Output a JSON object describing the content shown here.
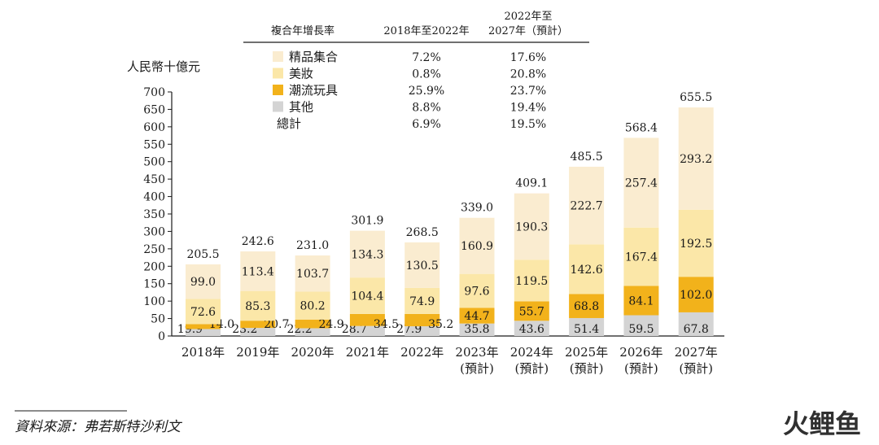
{
  "chart_data": {
    "type": "bar",
    "stacked": true,
    "ylabel": "人民幣十億元",
    "ylim": [
      0,
      700
    ],
    "yticks": [
      0,
      50,
      100,
      150,
      200,
      250,
      300,
      350,
      400,
      450,
      500,
      550,
      600,
      650,
      700
    ],
    "categories": [
      "2018年",
      "2019年",
      "2020年",
      "2021年",
      "2022年",
      "2023年",
      "2024年",
      "2025年",
      "2026年",
      "2027年"
    ],
    "categories_sub": [
      "",
      "",
      "",
      "",
      "",
      "(預計)",
      "(預計)",
      "(預計)",
      "(預計)",
      "(預計)"
    ],
    "series": [
      {
        "name": "其他",
        "color": "#d4d4d4",
        "values": [
          19.9,
          23.2,
          22.2,
          28.7,
          27.9,
          35.8,
          43.6,
          51.4,
          59.5,
          67.8
        ],
        "labels": [
          "19.9",
          "23.2",
          "22.2",
          "28.7",
          "27.9",
          "35.8",
          "43.6",
          "51.4",
          "59.5",
          "67.8"
        ]
      },
      {
        "name": "潮流玩具",
        "color": "#f2b21b",
        "values": [
          14.0,
          20.7,
          24.9,
          34.5,
          35.2,
          44.7,
          55.7,
          68.8,
          84.1,
          102.0
        ],
        "labels": [
          "14.0",
          "20.7",
          "24.9",
          "34.5",
          "35.2",
          "44.7",
          "55.7",
          "68.8",
          "84.1",
          "102.0"
        ]
      },
      {
        "name": "美妝",
        "color": "#fbe7a8",
        "values": [
          72.6,
          85.3,
          80.2,
          104.4,
          74.9,
          97.6,
          119.5,
          142.6,
          167.4,
          192.5
        ],
        "labels": [
          "72.6",
          "85.3",
          "80.2",
          "104.4",
          "74.9",
          "97.6",
          "119.5",
          "142.6",
          "167.4",
          "192.5"
        ]
      },
      {
        "name": "精品集合",
        "color": "#faecd0",
        "values": [
          99.0,
          113.4,
          103.7,
          134.3,
          130.5,
          160.9,
          190.3,
          222.7,
          257.4,
          293.2
        ],
        "labels": [
          "99.0",
          "113.4",
          "103.7",
          "134.3",
          "130.5",
          "160.9",
          "190.3",
          "222.7",
          "257.4",
          "293.2"
        ]
      }
    ],
    "totals": [
      "205.5",
      "242.6",
      "231.0",
      "301.9",
      "268.5",
      "339.0",
      "409.1",
      "485.5",
      "568.4",
      "655.5"
    ],
    "legend_table": {
      "headers": [
        "複合年增長率",
        "2018年至2022年",
        "2022年至",
        "2027年（預計）"
      ],
      "rows": [
        {
          "label": "精品集合",
          "swatch": "#faecd0",
          "cagr_hist": "7.2%",
          "cagr_fcst": "17.6%"
        },
        {
          "label": "美妝",
          "swatch": "#fbe7a8",
          "cagr_hist": "0.8%",
          "cagr_fcst": "20.8%"
        },
        {
          "label": "潮流玩具",
          "swatch": "#f2b21b",
          "cagr_hist": "25.9%",
          "cagr_fcst": "23.7%"
        },
        {
          "label": "其他",
          "swatch": "#d4d4d4",
          "cagr_hist": "8.8%",
          "cagr_fcst": "19.4%"
        },
        {
          "label": "總計",
          "swatch": "",
          "cagr_hist": "6.9%",
          "cagr_fcst": "19.5%"
        }
      ]
    }
  },
  "source": "資料來源：弗若斯特沙利文",
  "watermark": "火鲤鱼",
  "colors": {
    "axis": "#1a1a1a",
    "watermark": "#e8432a"
  }
}
